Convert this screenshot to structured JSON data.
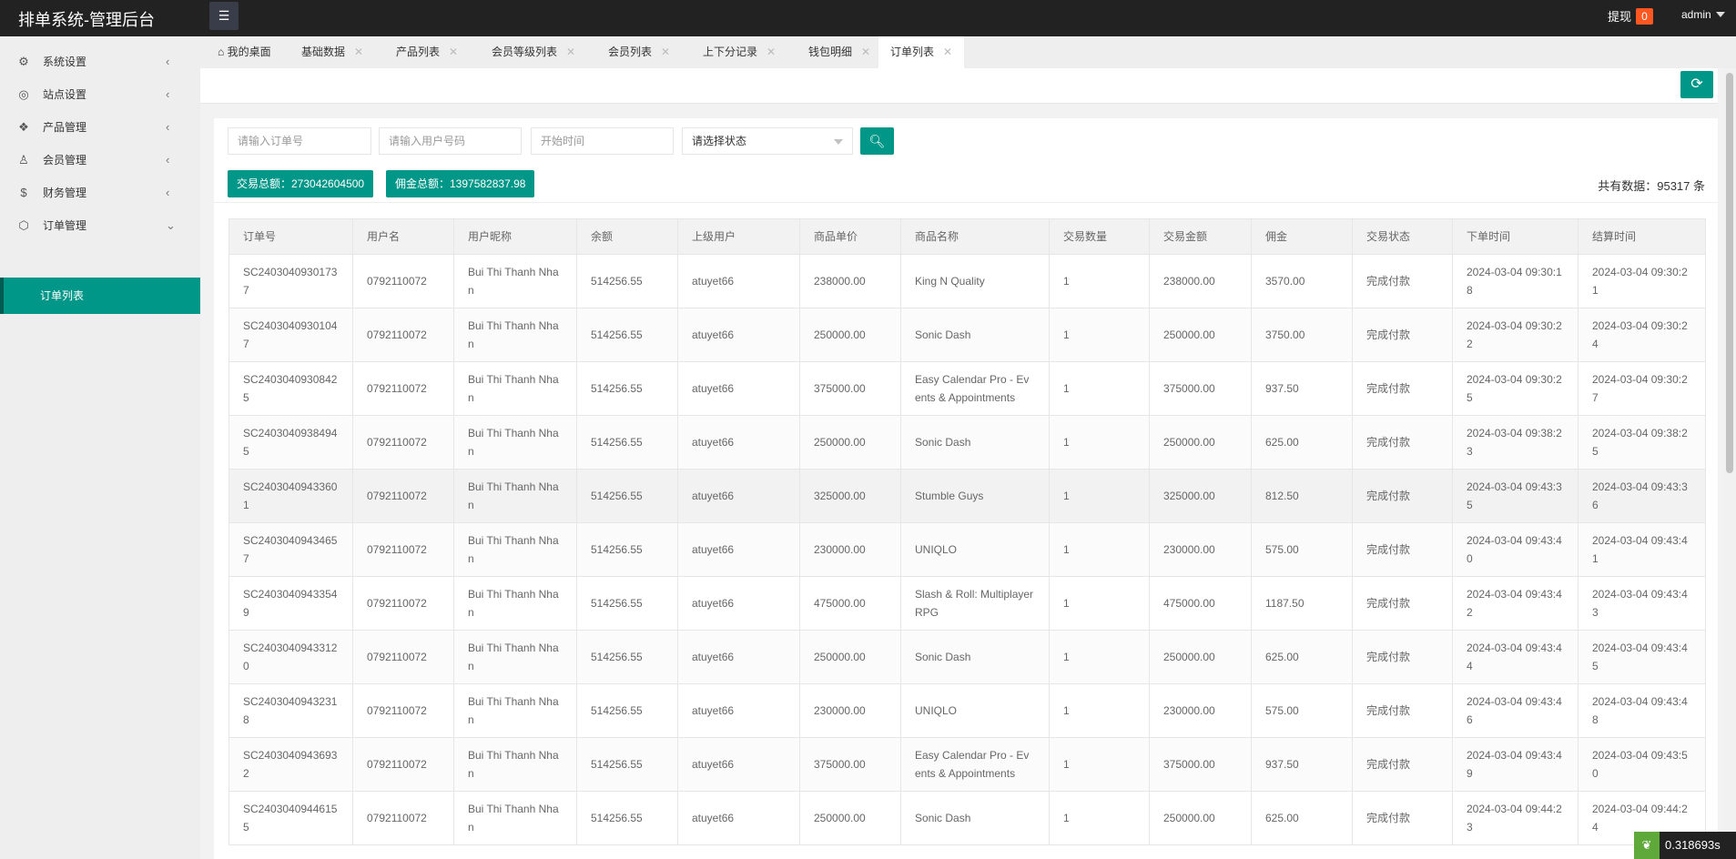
{
  "header": {
    "title": "排单系统-管理后台",
    "menu_icon": "hamburger-icon",
    "withdraw_label": "提现",
    "withdraw_count": "0",
    "user": "admin"
  },
  "sidebar": {
    "items": [
      {
        "label": "系统设置",
        "icon": "⚙"
      },
      {
        "label": "站点设置",
        "icon": "◎"
      },
      {
        "label": "产品管理",
        "icon": "❖"
      },
      {
        "label": "会员管理",
        "icon": "♙"
      },
      {
        "label": "财务管理",
        "icon": "$"
      },
      {
        "label": "订单管理",
        "icon": "⬡"
      }
    ],
    "active_sub": "订单列表"
  },
  "tabs": [
    {
      "label": "我的桌面",
      "closable": false
    },
    {
      "label": "基础数据",
      "closable": true
    },
    {
      "label": "产品列表",
      "closable": true
    },
    {
      "label": "会员等级列表",
      "closable": true
    },
    {
      "label": "会员列表",
      "closable": true
    },
    {
      "label": "上下分记录",
      "closable": true
    },
    {
      "label": "钱包明细",
      "closable": true
    },
    {
      "label": "订单列表",
      "closable": true,
      "active": true
    }
  ],
  "filters": {
    "order_placeholder": "请输入订单号",
    "user_placeholder": "请输入用户号码",
    "start_placeholder": "开始时间",
    "status_selected": "请选择状态"
  },
  "stats": {
    "trade_total": "交易总额：273042604500",
    "commission_total": "佣金总额：1397582837.98",
    "record_count": "共有数据：95317 条"
  },
  "table": {
    "columns": [
      "订单号",
      "用户名",
      "用户昵称",
      "余额",
      "上级用户",
      "商品单价",
      "商品名称",
      "交易数量",
      "交易金额",
      "佣金",
      "交易状态",
      "下单时间",
      "结算时间"
    ],
    "rows": [
      [
        "SC24030409301737",
        "0792110072",
        "Bui Thi Thanh Nhan",
        "514256.55",
        "atuyet66",
        "238000.00",
        "King N Quality",
        "1",
        "238000.00",
        "3570.00",
        "完成付款",
        "2024-03-04 09:30:18",
        "2024-03-04 09:30:21"
      ],
      [
        "SC24030409301047",
        "0792110072",
        "Bui Thi Thanh Nhan",
        "514256.55",
        "atuyet66",
        "250000.00",
        "Sonic Dash",
        "1",
        "250000.00",
        "3750.00",
        "完成付款",
        "2024-03-04 09:30:22",
        "2024-03-04 09:30:24"
      ],
      [
        "SC24030409308425",
        "0792110072",
        "Bui Thi Thanh Nhan",
        "514256.55",
        "atuyet66",
        "375000.00",
        "Easy Calendar Pro - Events & Appointments",
        "1",
        "375000.00",
        "937.50",
        "完成付款",
        "2024-03-04 09:30:25",
        "2024-03-04 09:30:27"
      ],
      [
        "SC24030409384945",
        "0792110072",
        "Bui Thi Thanh Nhan",
        "514256.55",
        "atuyet66",
        "250000.00",
        "Sonic Dash",
        "1",
        "250000.00",
        "625.00",
        "完成付款",
        "2024-03-04 09:38:23",
        "2024-03-04 09:38:25"
      ],
      [
        "SC24030409433601",
        "0792110072",
        "Bui Thi Thanh Nhan",
        "514256.55",
        "atuyet66",
        "325000.00",
        "Stumble Guys",
        "1",
        "325000.00",
        "812.50",
        "完成付款",
        "2024-03-04 09:43:35",
        "2024-03-04 09:43:36"
      ],
      [
        "SC24030409434657",
        "0792110072",
        "Bui Thi Thanh Nhan",
        "514256.55",
        "atuyet66",
        "230000.00",
        "UNIQLO",
        "1",
        "230000.00",
        "575.00",
        "完成付款",
        "2024-03-04 09:43:40",
        "2024-03-04 09:43:41"
      ],
      [
        "SC24030409433549",
        "0792110072",
        "Bui Thi Thanh Nhan",
        "514256.55",
        "atuyet66",
        "475000.00",
        "Slash & Roll: Multiplayer RPG",
        "1",
        "475000.00",
        "1187.50",
        "完成付款",
        "2024-03-04 09:43:42",
        "2024-03-04 09:43:43"
      ],
      [
        "SC24030409433120",
        "0792110072",
        "Bui Thi Thanh Nhan",
        "514256.55",
        "atuyet66",
        "250000.00",
        "Sonic Dash",
        "1",
        "250000.00",
        "625.00",
        "完成付款",
        "2024-03-04 09:43:44",
        "2024-03-04 09:43:45"
      ],
      [
        "SC24030409432318",
        "0792110072",
        "Bui Thi Thanh Nhan",
        "514256.55",
        "atuyet66",
        "230000.00",
        "UNIQLO",
        "1",
        "230000.00",
        "575.00",
        "完成付款",
        "2024-03-04 09:43:46",
        "2024-03-04 09:43:48"
      ],
      [
        "SC24030409436932",
        "0792110072",
        "Bui Thi Thanh Nhan",
        "514256.55",
        "atuyet66",
        "375000.00",
        "Easy Calendar Pro - Events & Appointments",
        "1",
        "375000.00",
        "937.50",
        "完成付款",
        "2024-03-04 09:43:49",
        "2024-03-04 09:43:50"
      ],
      [
        "SC24030409446155",
        "0792110072",
        "Bui Thi Thanh Nhan",
        "514256.55",
        "atuyet66",
        "250000.00",
        "Sonic Dash",
        "1",
        "250000.00",
        "625.00",
        "完成付款",
        "2024-03-04 09:44:23",
        "2024-03-04 09:44:24"
      ]
    ],
    "highlighted_row": 4
  },
  "timer": "0.318693s",
  "colors": {
    "accent": "#009688",
    "topbar": "#222222",
    "badge": "#ff5722"
  }
}
